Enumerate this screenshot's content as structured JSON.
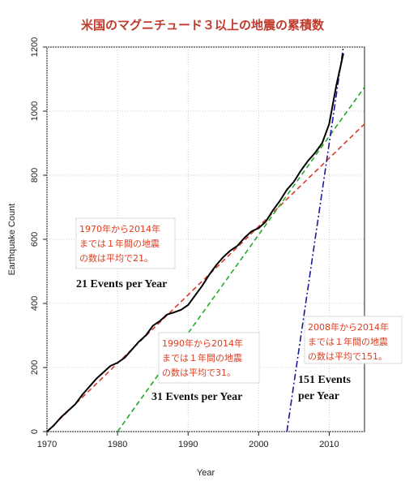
{
  "chart_data": {
    "type": "line",
    "title": "米国のマグニチュード３以上の地震の累積数",
    "xlabel": "Year",
    "ylabel": "Earthquake Count",
    "xlim": [
      1970,
      2015
    ],
    "ylim": [
      0,
      1200
    ],
    "x_ticks": [
      "1970",
      "1980",
      "1990",
      "2000",
      "2010"
    ],
    "y_ticks": [
      "0",
      "200",
      "400",
      "600",
      "800",
      "1000",
      "1200"
    ],
    "grid": true,
    "cumulative_series": {
      "name": "",
      "color": "#000000",
      "points": [
        [
          1970,
          0
        ],
        [
          1971,
          20
        ],
        [
          1972,
          45
        ],
        [
          1973,
          65
        ],
        [
          1974,
          85
        ],
        [
          1975,
          115
        ],
        [
          1976,
          140
        ],
        [
          1977,
          165
        ],
        [
          1978,
          185
        ],
        [
          1979,
          205
        ],
        [
          1980,
          215
        ],
        [
          1981,
          230
        ],
        [
          1982,
          255
        ],
        [
          1983,
          280
        ],
        [
          1984,
          300
        ],
        [
          1985,
          330
        ],
        [
          1986,
          345
        ],
        [
          1987,
          365
        ],
        [
          1988,
          372
        ],
        [
          1989,
          380
        ],
        [
          1990,
          395
        ],
        [
          1991,
          425
        ],
        [
          1992,
          455
        ],
        [
          1993,
          490
        ],
        [
          1994,
          520
        ],
        [
          1995,
          545
        ],
        [
          1996,
          565
        ],
        [
          1997,
          580
        ],
        [
          1998,
          605
        ],
        [
          1999,
          625
        ],
        [
          2000,
          635
        ],
        [
          2001,
          655
        ],
        [
          2002,
          690
        ],
        [
          2003,
          720
        ],
        [
          2004,
          755
        ],
        [
          2005,
          780
        ],
        [
          2006,
          815
        ],
        [
          2007,
          845
        ],
        [
          2008,
          870
        ],
        [
          2009,
          900
        ],
        [
          2010,
          960
        ],
        [
          2011,
          1080
        ],
        [
          2012,
          1180
        ]
      ]
    },
    "trend_lines": [
      {
        "name": "21 Events per Year",
        "color": "#d63a2a",
        "dash": "6,4",
        "points": [
          [
            1970,
            0
          ],
          [
            2015,
            960
          ]
        ]
      },
      {
        "name": "31 Events per Year",
        "color": "#22aa22",
        "dash": "6,4",
        "points": [
          [
            1980,
            0
          ],
          [
            2015,
            1075
          ]
        ]
      },
      {
        "name": "151 Events per Year",
        "color": "#1a1a99",
        "dash": "8,3,2,3",
        "points": [
          [
            2004,
            0
          ],
          [
            2012,
            1200
          ]
        ]
      }
    ],
    "annotations": [
      {
        "id": "note-1970",
        "lines": [
          "1970年から2014年",
          "までは１年間の地震",
          "の数は平均で21。"
        ]
      },
      {
        "id": "note-1990",
        "lines": [
          "1990年から2014年",
          "までは１年間の地震",
          "の数は平均で31。"
        ]
      },
      {
        "id": "note-2008",
        "lines": [
          "2008年から2014年",
          "までは１年間の地震",
          "の数は平均で151。"
        ]
      }
    ],
    "rate_labels": [
      {
        "id": "rate-21",
        "lines": [
          "21 Events per Year"
        ]
      },
      {
        "id": "rate-31",
        "lines": [
          "31 Events per Year"
        ]
      },
      {
        "id": "rate-151",
        "lines": [
          "151 Events",
          "per Year"
        ]
      }
    ]
  }
}
